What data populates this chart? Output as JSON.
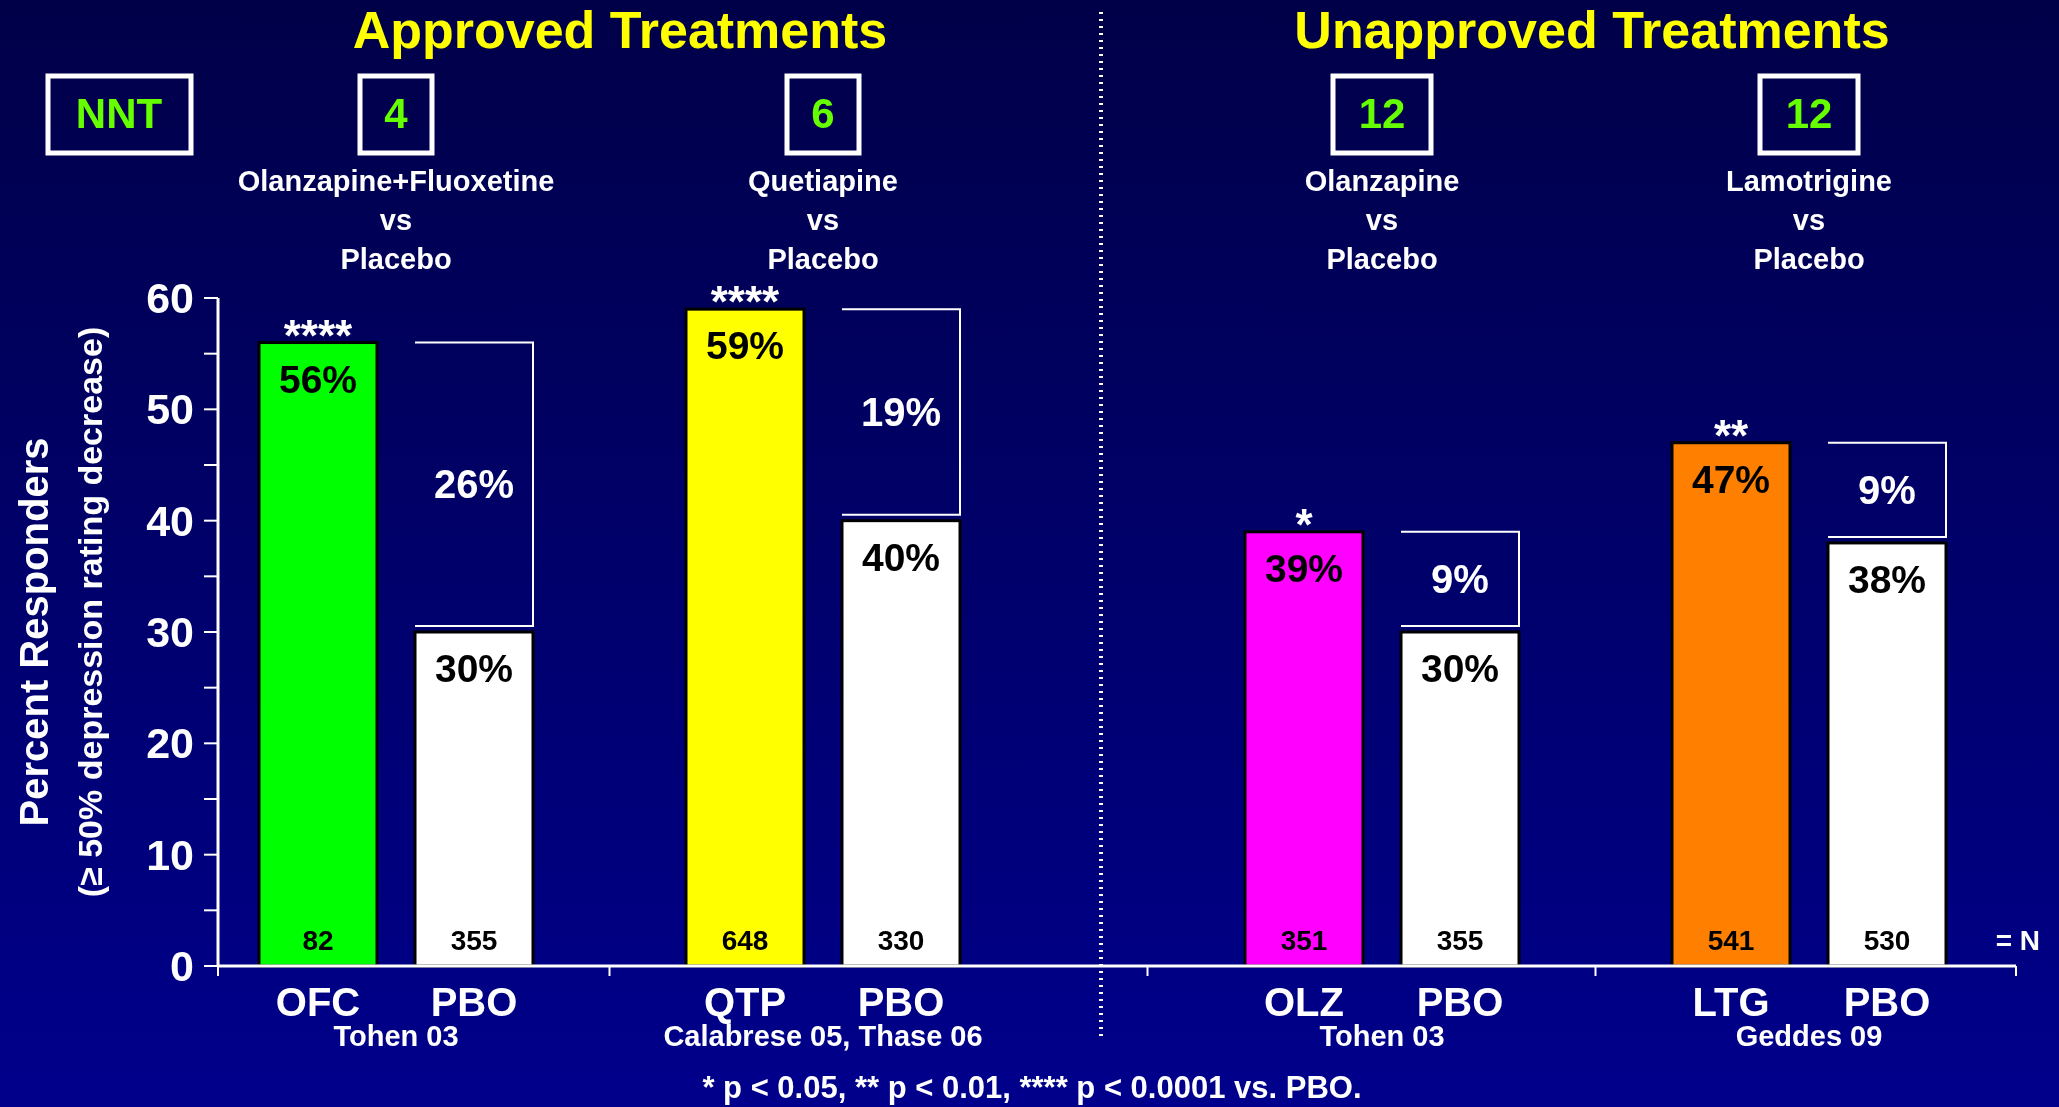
{
  "chart_data": {
    "type": "bar",
    "ylabel": "Percent Responders\n(≥ 50% depression rating decrease)",
    "categories": [
      "OFC",
      "PBO",
      "QTP",
      "PBO",
      "OLZ",
      "PBO",
      "LTG",
      "PBO"
    ],
    "values": [
      56,
      30,
      59,
      40,
      39,
      30,
      47,
      38
    ],
    "colors": [
      "#00ff00",
      "#ffffff",
      "#ffff00",
      "#ffffff",
      "#ff00ff",
      "#ffffff",
      "#ff8000",
      "#ffffff"
    ],
    "value_labels": [
      "56%",
      "30%",
      "59%",
      "40%",
      "39%",
      "30%",
      "47%",
      "38%"
    ],
    "ylim": [
      0,
      60
    ],
    "yticks": [
      0,
      {
        "value": 5,
        "label": null
      },
      10,
      {
        "value": 15,
        "label": null
      },
      20,
      {
        "value": 25,
        "label": null
      },
      30,
      {
        "value": 35,
        "label": null
      },
      40,
      {
        "value": 45,
        "label": null
      },
      50,
      {
        "value": 55,
        "label": null
      },
      60
    ],
    "annotations": [
      "Approved Treatments",
      "Unapproved Treatments",
      "NNT",
      "4",
      "6",
      "12",
      "12",
      "Olanzapine+Fluoxetine\nvs\nPlacebo",
      "Quetiapine\nvs\nPlacebo",
      "Olanzapine\nvs\nPlacebo",
      "Lamotrigine\nvs\nPlacebo",
      "Tohen 03",
      "Calabrese 05, Thase 06",
      "Tohen 03",
      "Geddes 09",
      "82",
      "355",
      "648",
      "330",
      "351",
      "355",
      "541",
      "530",
      "****",
      "****",
      "*",
      "**",
      "26%",
      "19%",
      "9%",
      "9%",
      "= N",
      "* p < 0.05, ** p < 0.01, **** p < 0.0001 vs. PBO."
    ]
  }
}
